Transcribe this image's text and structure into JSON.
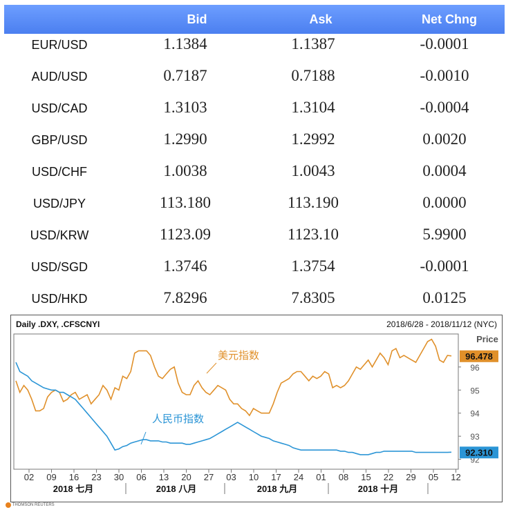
{
  "table": {
    "headers": {
      "bid": "Bid",
      "ask": "Ask",
      "net": "Net Chng"
    },
    "rows": [
      {
        "pair": "EUR/USD",
        "bid": "1.1384",
        "ask": "1.1387",
        "net": "-0.0001"
      },
      {
        "pair": "AUD/USD",
        "bid": "0.7187",
        "ask": "0.7188",
        "net": "-0.0010"
      },
      {
        "pair": "USD/CAD",
        "bid": "1.3103",
        "ask": "1.3104",
        "net": "-0.0004"
      },
      {
        "pair": "GBP/USD",
        "bid": "1.2990",
        "ask": "1.2992",
        "net": "0.0020"
      },
      {
        "pair": "USD/CHF",
        "bid": "1.0038",
        "ask": "1.0043",
        "net": "0.0004"
      },
      {
        "pair": "USD/JPY",
        "bid": "113.180",
        "ask": "113.190",
        "net": "0.0000"
      },
      {
        "pair": "USD/KRW",
        "bid": "1123.09",
        "ask": "1123.10",
        "net": "5.9900"
      },
      {
        "pair": "USD/SGD",
        "bid": "1.3746",
        "ask": "1.3754",
        "net": "-0.0001"
      },
      {
        "pair": "USD/HKD",
        "bid": "7.8296",
        "ask": "7.8305",
        "net": "0.0125"
      }
    ]
  },
  "chart_data": {
    "type": "line",
    "title": "Daily .DXY, .CFSCNYI",
    "date_range": "2018/6/28 - 2018/11/12 (NYC)",
    "ylabel": "Price",
    "y_ticks": [
      96,
      95,
      94,
      93,
      92
    ],
    "ylim": [
      91.6,
      97.4
    ],
    "x_ticks": [
      "02",
      "09",
      "16",
      "23",
      "30",
      "06",
      "13",
      "20",
      "27",
      "03",
      "10",
      "17",
      "24",
      "01",
      "08",
      "15",
      "22",
      "29",
      "05",
      "12"
    ],
    "month_labels": [
      "2018 七月",
      "2018 八月",
      "2018 九月",
      "2018 十月"
    ],
    "series": [
      {
        "name": "美元指数",
        "color": "#e0902a",
        "last_label": "96.478",
        "values": [
          95.4,
          94.9,
          95.2,
          95.0,
          94.6,
          94.1,
          94.1,
          94.2,
          94.7,
          94.9,
          95.0,
          94.9,
          94.5,
          94.6,
          94.8,
          94.9,
          94.6,
          94.7,
          94.8,
          94.4,
          94.6,
          94.8,
          95.2,
          95.0,
          94.6,
          95.1,
          95.0,
          95.6,
          95.5,
          95.8,
          96.6,
          96.7,
          96.7,
          96.7,
          96.5,
          96.0,
          95.6,
          95.5,
          95.7,
          95.9,
          96.0,
          95.3,
          94.9,
          94.8,
          94.8,
          95.2,
          95.4,
          95.1,
          94.9,
          94.8,
          95.0,
          95.2,
          95.1,
          95.0,
          94.6,
          94.4,
          94.4,
          94.2,
          94.1,
          93.9,
          94.2,
          94.1,
          94.0,
          94.0,
          94.0,
          94.4,
          94.9,
          95.3,
          95.4,
          95.5,
          95.7,
          95.8,
          95.8,
          95.6,
          95.4,
          95.6,
          95.5,
          95.6,
          95.8,
          95.7,
          95.1,
          95.2,
          95.1,
          95.2,
          95.4,
          95.7,
          96.0,
          95.9,
          96.1,
          96.3,
          96.0,
          96.3,
          96.6,
          96.4,
          96.1,
          96.7,
          96.8,
          96.4,
          96.5,
          96.4,
          96.3,
          96.2,
          96.5,
          96.8,
          97.1,
          97.2,
          96.9,
          96.3,
          96.2,
          96.5,
          96.48
        ]
      },
      {
        "name": "人民币指数",
        "color": "#2b95d6",
        "last_label": "92.310",
        "values": [
          96.2,
          95.8,
          95.7,
          95.6,
          95.4,
          95.3,
          95.2,
          95.1,
          95.05,
          95.0,
          95.0,
          94.9,
          94.9,
          94.8,
          94.7,
          94.6,
          94.4,
          94.2,
          94.0,
          93.8,
          93.6,
          93.4,
          93.2,
          93.0,
          92.7,
          92.4,
          92.45,
          92.55,
          92.6,
          92.7,
          92.75,
          92.8,
          92.85,
          92.85,
          92.8,
          92.8,
          92.8,
          92.75,
          92.75,
          92.7,
          92.7,
          92.7,
          92.7,
          92.65,
          92.65,
          92.7,
          92.75,
          92.8,
          92.85,
          92.9,
          93.0,
          93.1,
          93.2,
          93.3,
          93.4,
          93.5,
          93.6,
          93.5,
          93.4,
          93.3,
          93.2,
          93.1,
          93.0,
          92.95,
          92.9,
          92.8,
          92.75,
          92.7,
          92.65,
          92.6,
          92.5,
          92.45,
          92.4,
          92.4,
          92.4,
          92.4,
          92.4,
          92.4,
          92.4,
          92.4,
          92.4,
          92.4,
          92.35,
          92.35,
          92.3,
          92.3,
          92.25,
          92.2,
          92.2,
          92.2,
          92.25,
          92.3,
          92.3,
          92.35,
          92.35,
          92.35,
          92.35,
          92.35,
          92.35,
          92.35,
          92.35,
          92.3,
          92.3,
          92.3,
          92.3,
          92.3,
          92.3,
          92.3,
          92.3,
          92.3,
          92.31
        ]
      }
    ],
    "grid": false,
    "legend": "inline-labels"
  },
  "footer": {
    "brand": "THOMSON REUTERS"
  }
}
